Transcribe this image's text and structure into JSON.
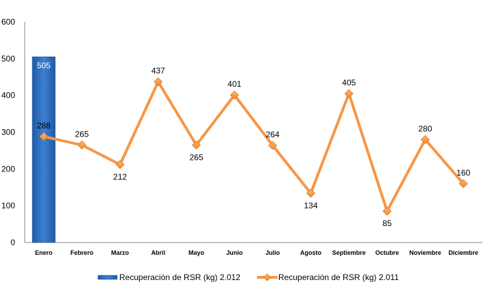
{
  "chart_data": {
    "type": "bar",
    "categories": [
      "Enero",
      "Febrero",
      "Marzo",
      "Abril",
      "Mayo",
      "Junio",
      "Julio",
      "Agosto",
      "Septiembre",
      "Octubre",
      "Noviembre",
      "Diciembre"
    ],
    "ylim": [
      0,
      600
    ],
    "yticks": [
      0,
      100,
      200,
      300,
      400,
      500,
      600
    ],
    "grid": false,
    "legend": "bottom",
    "series": [
      {
        "name": "Recuperación de RSR (kg) 2.012",
        "type": "bar",
        "color": "#2E6FC0",
        "values": [
          505,
          null,
          null,
          null,
          null,
          null,
          null,
          null,
          null,
          null,
          null,
          null
        ]
      },
      {
        "name": "Recuperación de RSR (kg) 2.011",
        "type": "line",
        "color": "#F79646",
        "marker": "diamond",
        "values": [
          288,
          265,
          212,
          437,
          265,
          401,
          264,
          134,
          405,
          85,
          280,
          160
        ]
      }
    ]
  }
}
